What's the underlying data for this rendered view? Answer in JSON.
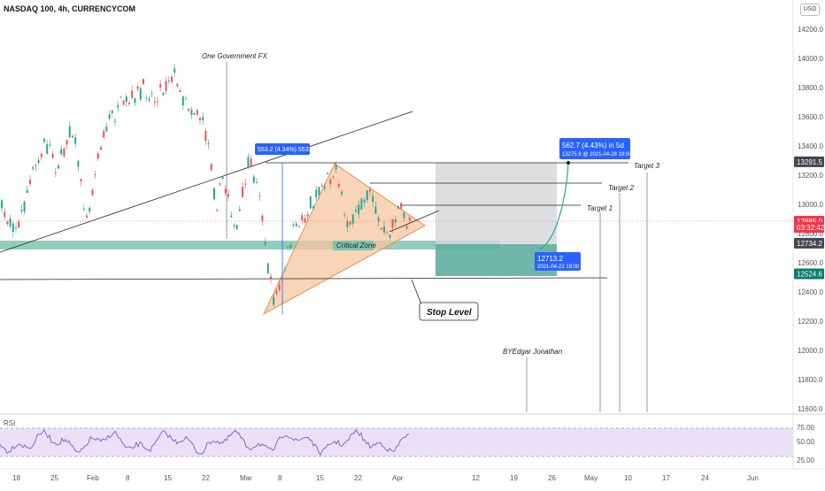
{
  "header": {
    "title": "NASDAQ 100, 4h, CURRENCYCOM",
    "currency_button": "USD"
  },
  "price_axis": {
    "ticks": [
      "14200.0",
      "14000.0",
      "13800.0",
      "13600.0",
      "13400.0",
      "13200.0",
      "13000.0",
      "12800.0",
      "12600.0",
      "12400.0",
      "12200.0",
      "12000.0",
      "11800.0",
      "11600.0"
    ],
    "badges": [
      {
        "label": "13291.5",
        "value": 13291.5,
        "color": "#434651"
      },
      {
        "label": "12885.0",
        "value": 12885.0,
        "color": "#f23645"
      },
      {
        "label": "03:32:42",
        "value": 12842,
        "color": "#f23645"
      },
      {
        "label": "12734.2",
        "value": 12734.2,
        "color": "#434651"
      },
      {
        "label": "12524.6",
        "value": 12524.6,
        "color": "#0b7b6c"
      }
    ]
  },
  "time_axis": {
    "labels": [
      "18",
      "25",
      "Feb",
      "8",
      "15",
      "22",
      "Mar",
      "8",
      "15",
      "22",
      "Apr",
      "12",
      "19",
      "26",
      "May",
      "10",
      "17",
      "24",
      "Jun"
    ]
  },
  "rsi": {
    "label": "RSI",
    "ticks": [
      "75.00",
      "50.00",
      "25.00"
    ],
    "upper": 70,
    "lower": 30
  },
  "annotations": {
    "one_government": "One Government FX",
    "critical_zone": "Critical Zone",
    "stop_level": "Stop Level",
    "target1": "Target 1",
    "target2": "Target 2",
    "target3": "Target 3",
    "author": "BYEdgar Jonathan"
  },
  "measure_tags": {
    "triangle": "553.2 (4.34%) 5532",
    "forecast_line1": "562.7 (4.43%) in 5d",
    "forecast_line2": "13275.9 @ 2021-04-28  19:00",
    "entry_line1": "12713.2",
    "entry_line2": "2021-04-22 19:00"
  },
  "colors": {
    "up": "#26a69a",
    "down": "#ef5350",
    "zone": "#7fc3b1",
    "triangle": "#f7c59f",
    "stop_box": "#5fae9e",
    "target_box": "#d5d6d8",
    "tag": "#2962ff",
    "rsi": "#7e57c2"
  },
  "chart_data": {
    "type": "candlestick",
    "title": "NASDAQ 100, 4h, CURRENCYCOM",
    "y_unit": "USD",
    "ylim": [
      11600,
      14300
    ],
    "levels": {
      "critical_zone": [
        12700,
        12770
      ],
      "stop_level": 12520,
      "target_1": 12990,
      "target_2": 13140,
      "target_3": 13291.5,
      "last_price": 12885.0
    },
    "rsi_ylim": [
      0,
      100
    ]
  }
}
